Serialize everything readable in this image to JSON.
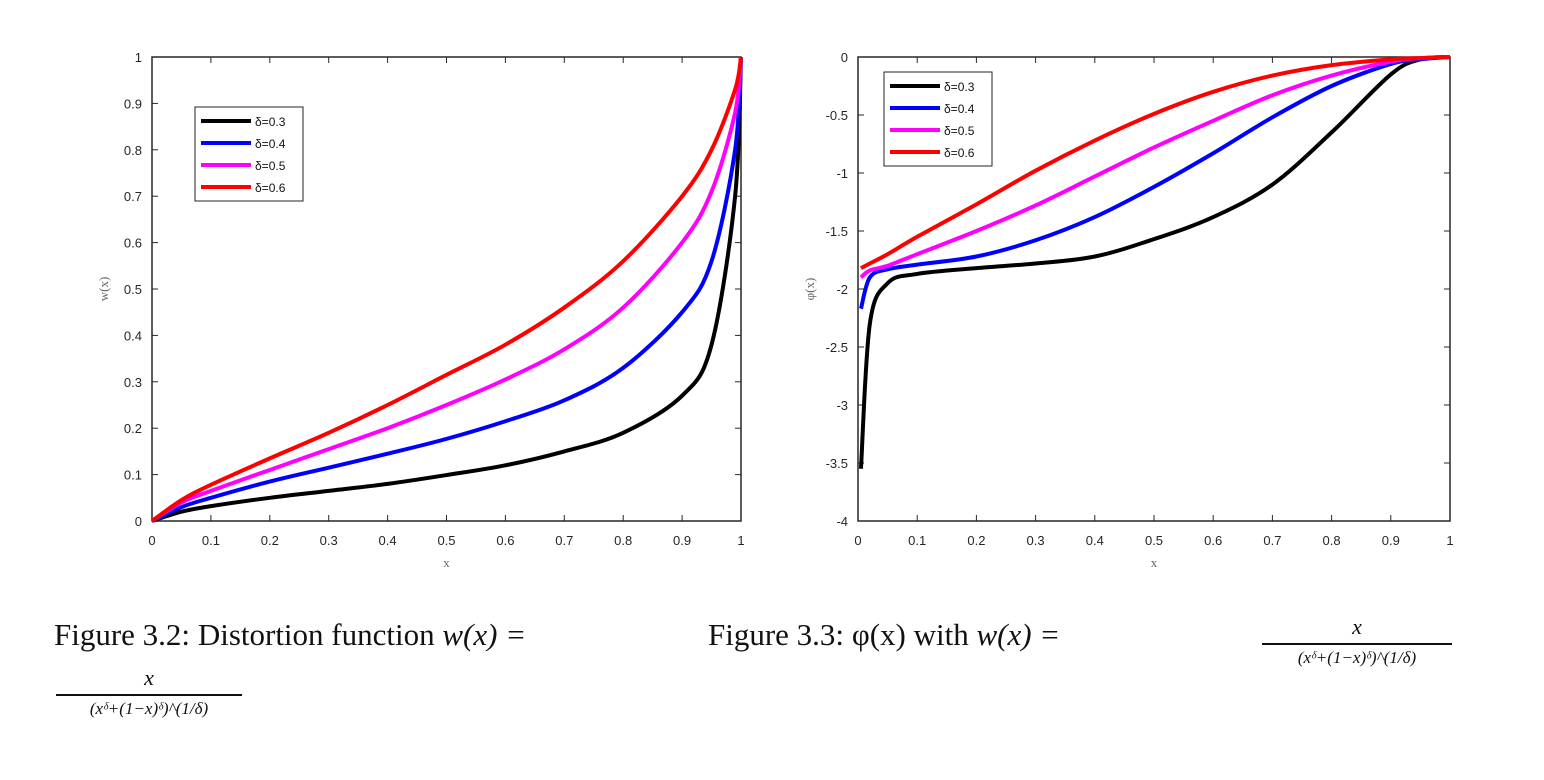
{
  "chart_data": [
    {
      "type": "line",
      "xlabel": "x",
      "ylabel": "w(x)",
      "xlim": [
        0,
        1
      ],
      "ylim": [
        0,
        1
      ],
      "xticks": [
        "0",
        "0.1",
        "0.2",
        "0.3",
        "0.4",
        "0.5",
        "0.6",
        "0.7",
        "0.8",
        "0.9",
        "1"
      ],
      "yticks": [
        "0",
        "0.1",
        "0.2",
        "0.3",
        "0.4",
        "0.5",
        "0.6",
        "0.7",
        "0.8",
        "0.9",
        "1"
      ],
      "legend_position": "top-left",
      "x": [
        0,
        0.05,
        0.1,
        0.2,
        0.3,
        0.4,
        0.5,
        0.6,
        0.7,
        0.8,
        0.9,
        0.95,
        0.99,
        1
      ],
      "series": [
        {
          "name": "δ=0.3",
          "color": "#000000",
          "values": [
            0,
            0.02,
            0.032,
            0.05,
            0.065,
            0.08,
            0.099,
            0.12,
            0.15,
            0.19,
            0.27,
            0.38,
            0.7,
            1
          ]
        },
        {
          "name": "δ=0.4",
          "color": "#0000ff",
          "values": [
            0,
            0.03,
            0.05,
            0.085,
            0.115,
            0.145,
            0.177,
            0.215,
            0.26,
            0.33,
            0.45,
            0.56,
            0.8,
            1
          ]
        },
        {
          "name": "δ=0.5",
          "color": "#ff00ff",
          "values": [
            0,
            0.04,
            0.065,
            0.11,
            0.155,
            0.2,
            0.25,
            0.305,
            0.37,
            0.46,
            0.6,
            0.71,
            0.88,
            1
          ]
        },
        {
          "name": "δ=0.6",
          "color": "#ff0000",
          "values": [
            0,
            0.045,
            0.078,
            0.135,
            0.19,
            0.25,
            0.315,
            0.38,
            0.46,
            0.56,
            0.7,
            0.8,
            0.93,
            1
          ]
        }
      ]
    },
    {
      "type": "line",
      "xlabel": "x",
      "ylabel": "φ(x)",
      "xlim": [
        0,
        1
      ],
      "ylim": [
        -4,
        0
      ],
      "xticks": [
        "0",
        "0.1",
        "0.2",
        "0.3",
        "0.4",
        "0.5",
        "0.6",
        "0.7",
        "0.8",
        "0.9",
        "1"
      ],
      "yticks": [
        "-4",
        "-3.5",
        "-3",
        "-2.5",
        "-2",
        "-1.5",
        "-1",
        "-0.5",
        "0"
      ],
      "legend_position": "top-left",
      "x": [
        0.005,
        0.02,
        0.05,
        0.1,
        0.2,
        0.3,
        0.4,
        0.5,
        0.6,
        0.7,
        0.8,
        0.9,
        0.95,
        1
      ],
      "series": [
        {
          "name": "δ=0.3",
          "color": "#000000",
          "values": [
            -3.55,
            -2.3,
            -1.95,
            -1.87,
            -1.82,
            -1.78,
            -1.72,
            -1.57,
            -1.38,
            -1.1,
            -0.65,
            -0.15,
            -0.02,
            0
          ]
        },
        {
          "name": "δ=0.4",
          "color": "#0000ff",
          "values": [
            -2.17,
            -1.9,
            -1.83,
            -1.79,
            -1.72,
            -1.58,
            -1.38,
            -1.12,
            -0.83,
            -0.52,
            -0.25,
            -0.06,
            -0.02,
            0
          ]
        },
        {
          "name": "δ=0.5",
          "color": "#ff00ff",
          "values": [
            -1.9,
            -1.84,
            -1.8,
            -1.7,
            -1.5,
            -1.28,
            -1.03,
            -0.78,
            -0.55,
            -0.33,
            -0.16,
            -0.04,
            -0.01,
            0
          ]
        },
        {
          "name": "δ=0.6",
          "color": "#ff0000",
          "values": [
            -1.82,
            -1.78,
            -1.7,
            -1.55,
            -1.27,
            -0.98,
            -0.72,
            -0.49,
            -0.3,
            -0.16,
            -0.07,
            -0.02,
            -0.01,
            0
          ]
        }
      ]
    }
  ],
  "captions": {
    "left": {
      "label": "Figure 3.2:",
      "text": "Distortion function",
      "lhs": "w(x) ="
    },
    "right": {
      "label": "Figure 3.3:",
      "text": "φ(x) with",
      "lhs": "w(x) ="
    },
    "formula": {
      "numerator": "x",
      "denominator": "(xᵟ+(1−x)ᵟ)^(1/δ)"
    }
  }
}
